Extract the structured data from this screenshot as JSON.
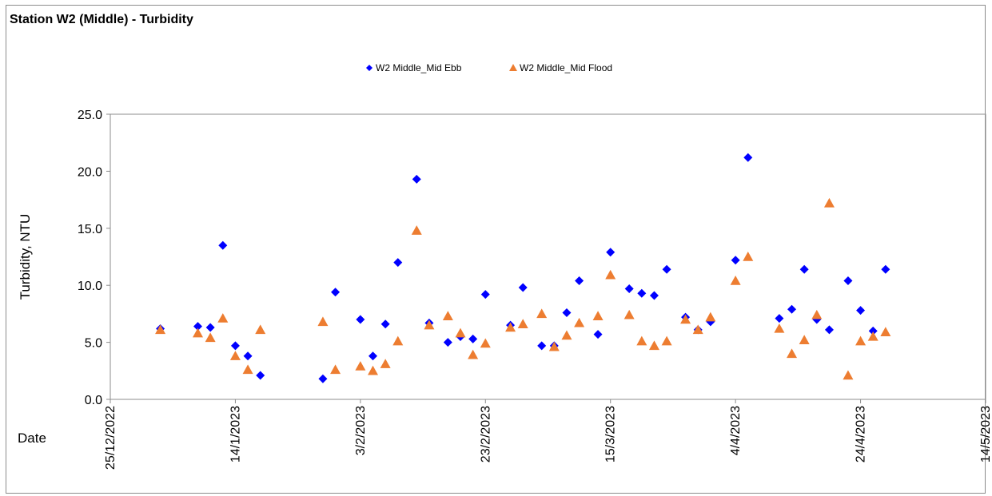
{
  "chart_data": {
    "type": "scatter",
    "title": "Station W2 (Middle) - Turbidity",
    "xlabel": "Date",
    "ylabel": "Turbidity, NTU",
    "ylim": [
      0,
      25
    ],
    "yticks": [
      "0.0",
      "5.0",
      "10.0",
      "15.0",
      "20.0",
      "25.0"
    ],
    "xlim": [
      "2022-12-25",
      "2023-05-14"
    ],
    "xticks": [
      "25/12/2022",
      "14/1/2023",
      "3/2/2023",
      "23/2/2023",
      "15/3/2023",
      "4/4/2023",
      "24/4/2023",
      "14/5/2023"
    ],
    "grid": false,
    "legend_position": "top",
    "series": [
      {
        "name": "W2 Middle_Mid Ebb",
        "color": "#0000ff",
        "marker": "diamond",
        "points": [
          [
            "2023-01-02",
            6.2
          ],
          [
            "2023-01-08",
            6.4
          ],
          [
            "2023-01-10",
            6.3
          ],
          [
            "2023-01-12",
            13.5
          ],
          [
            "2023-01-14",
            4.7
          ],
          [
            "2023-01-16",
            3.8
          ],
          [
            "2023-01-18",
            2.1
          ],
          [
            "2023-01-28",
            1.8
          ],
          [
            "2023-01-30",
            9.4
          ],
          [
            "2023-02-03",
            7.0
          ],
          [
            "2023-02-05",
            3.8
          ],
          [
            "2023-02-07",
            6.6
          ],
          [
            "2023-02-09",
            12.0
          ],
          [
            "2023-02-12",
            19.3
          ],
          [
            "2023-02-14",
            6.7
          ],
          [
            "2023-02-17",
            5.0
          ],
          [
            "2023-02-19",
            5.5
          ],
          [
            "2023-02-21",
            5.3
          ],
          [
            "2023-02-23",
            9.2
          ],
          [
            "2023-02-27",
            6.5
          ],
          [
            "2023-02-29",
            9.8
          ],
          [
            "2023-03-04",
            4.7
          ],
          [
            "2023-03-06",
            4.7
          ],
          [
            "2023-03-08",
            7.6
          ],
          [
            "2023-03-10",
            10.4
          ],
          [
            "2023-03-13",
            5.7
          ],
          [
            "2023-03-15",
            12.9
          ],
          [
            "2023-03-18",
            9.7
          ],
          [
            "2023-03-20",
            9.3
          ],
          [
            "2023-03-22",
            9.1
          ],
          [
            "2023-03-24",
            11.4
          ],
          [
            "2023-03-27",
            7.2
          ],
          [
            "2023-03-29",
            6.1
          ],
          [
            "2023-03-31",
            6.8
          ],
          [
            "2023-04-04",
            12.2
          ],
          [
            "2023-04-06",
            21.2
          ],
          [
            "2023-04-11",
            7.1
          ],
          [
            "2023-04-13",
            7.9
          ],
          [
            "2023-04-15",
            11.4
          ],
          [
            "2023-04-17",
            7.0
          ],
          [
            "2023-04-19",
            6.1
          ],
          [
            "2023-04-22",
            10.4
          ],
          [
            "2023-04-24",
            7.8
          ],
          [
            "2023-04-26",
            6.0
          ],
          [
            "2023-04-28",
            11.4
          ]
        ]
      },
      {
        "name": "W2 Middle_Mid Flood",
        "color": "#ed7d31",
        "marker": "triangle",
        "points": [
          [
            "2023-01-02",
            6.1
          ],
          [
            "2023-01-08",
            5.8
          ],
          [
            "2023-01-10",
            5.4
          ],
          [
            "2023-01-12",
            7.1
          ],
          [
            "2023-01-14",
            3.8
          ],
          [
            "2023-01-16",
            2.6
          ],
          [
            "2023-01-18",
            6.1
          ],
          [
            "2023-01-28",
            6.8
          ],
          [
            "2023-01-30",
            2.6
          ],
          [
            "2023-02-03",
            2.9
          ],
          [
            "2023-02-05",
            2.5
          ],
          [
            "2023-02-07",
            3.1
          ],
          [
            "2023-02-09",
            5.1
          ],
          [
            "2023-02-12",
            14.8
          ],
          [
            "2023-02-14",
            6.5
          ],
          [
            "2023-02-17",
            7.3
          ],
          [
            "2023-02-19",
            5.8
          ],
          [
            "2023-02-21",
            3.9
          ],
          [
            "2023-02-23",
            4.9
          ],
          [
            "2023-02-27",
            6.3
          ],
          [
            "2023-02-29",
            6.6
          ],
          [
            "2023-03-04",
            7.5
          ],
          [
            "2023-03-06",
            4.6
          ],
          [
            "2023-03-08",
            5.6
          ],
          [
            "2023-03-10",
            6.7
          ],
          [
            "2023-03-13",
            7.3
          ],
          [
            "2023-03-15",
            10.9
          ],
          [
            "2023-03-18",
            7.4
          ],
          [
            "2023-03-20",
            5.1
          ],
          [
            "2023-03-22",
            4.7
          ],
          [
            "2023-03-24",
            5.1
          ],
          [
            "2023-03-27",
            7.0
          ],
          [
            "2023-03-29",
            6.1
          ],
          [
            "2023-03-31",
            7.2
          ],
          [
            "2023-04-04",
            10.4
          ],
          [
            "2023-04-06",
            12.5
          ],
          [
            "2023-04-11",
            6.2
          ],
          [
            "2023-04-13",
            4.0
          ],
          [
            "2023-04-15",
            5.2
          ],
          [
            "2023-04-17",
            7.4
          ],
          [
            "2023-04-19",
            17.2
          ],
          [
            "2023-04-22",
            2.1
          ],
          [
            "2023-04-24",
            5.1
          ],
          [
            "2023-04-26",
            5.5
          ],
          [
            "2023-04-28",
            5.9
          ]
        ]
      }
    ]
  }
}
